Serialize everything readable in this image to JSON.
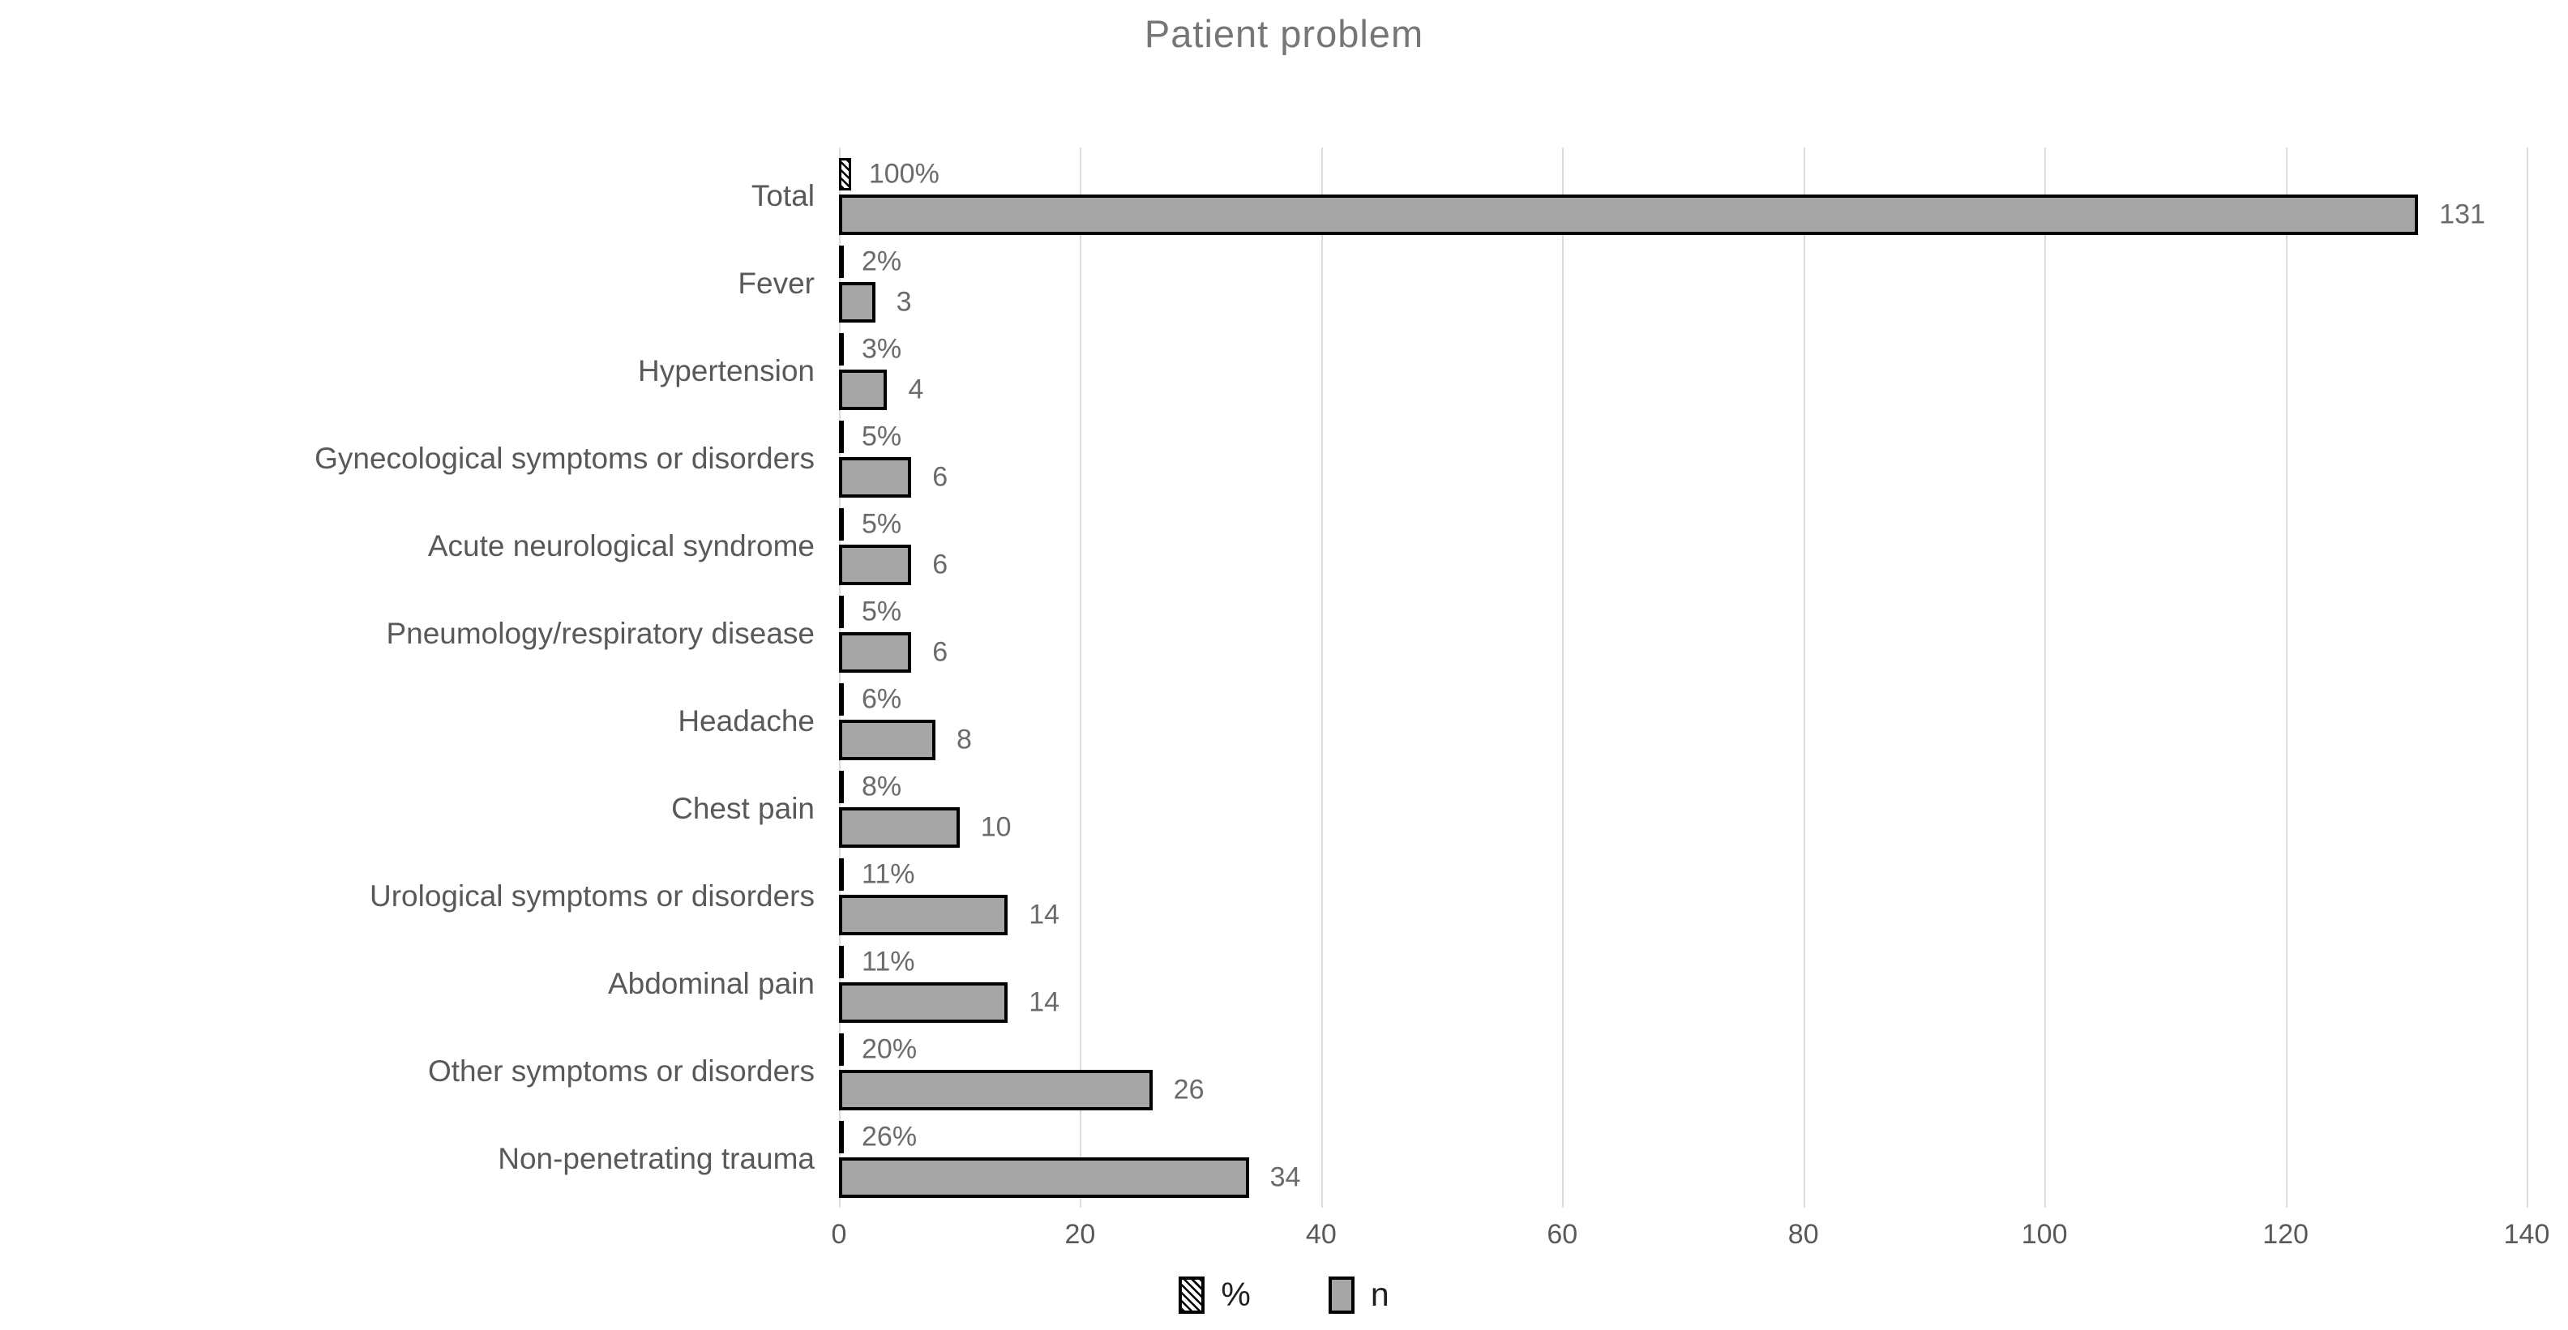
{
  "chart_data": {
    "type": "bar",
    "orientation": "horizontal",
    "title": "Patient problem",
    "categories": [
      "Total",
      "Fever",
      "Hypertension",
      "Gynecological symptoms or disorders",
      "Acute neurological syndrome",
      "Pneumology/respiratory disease",
      "Headache",
      "Chest pain",
      "Urological symptoms or disorders",
      "Abdominal pain",
      "Other symptoms or disorders",
      "Non-penetrating trauma"
    ],
    "series": [
      {
        "name": "%",
        "style": "hatched",
        "values": [
          1.0,
          0.02,
          0.03,
          0.05,
          0.05,
          0.05,
          0.06,
          0.08,
          0.11,
          0.11,
          0.2,
          0.26
        ],
        "labels": [
          "100%",
          "2%",
          "3%",
          "5%",
          "5%",
          "5%",
          "6%",
          "8%",
          "11%",
          "11%",
          "20%",
          "26%"
        ]
      },
      {
        "name": "n",
        "style": "solid",
        "values": [
          131,
          3,
          4,
          6,
          6,
          6,
          8,
          10,
          14,
          14,
          26,
          34
        ],
        "labels": [
          "131",
          "3",
          "4",
          "6",
          "6",
          "6",
          "8",
          "10",
          "14",
          "14",
          "26",
          "34"
        ]
      }
    ],
    "xlim": [
      0,
      140
    ],
    "x_ticks": [
      "0",
      "20",
      "40",
      "60",
      "80",
      "100",
      "120",
      "140"
    ],
    "grid": true,
    "legend_position": "bottom",
    "colors": {
      "bar_fill": "#a6a6a6",
      "bar_border": "#000000",
      "hatch_foreground": "#000000",
      "hatch_background": "#ffffff",
      "grid_line": "#dcdcdc",
      "text": "#595959",
      "value_text": "#6b6b6b",
      "title_text": "#767676"
    }
  }
}
